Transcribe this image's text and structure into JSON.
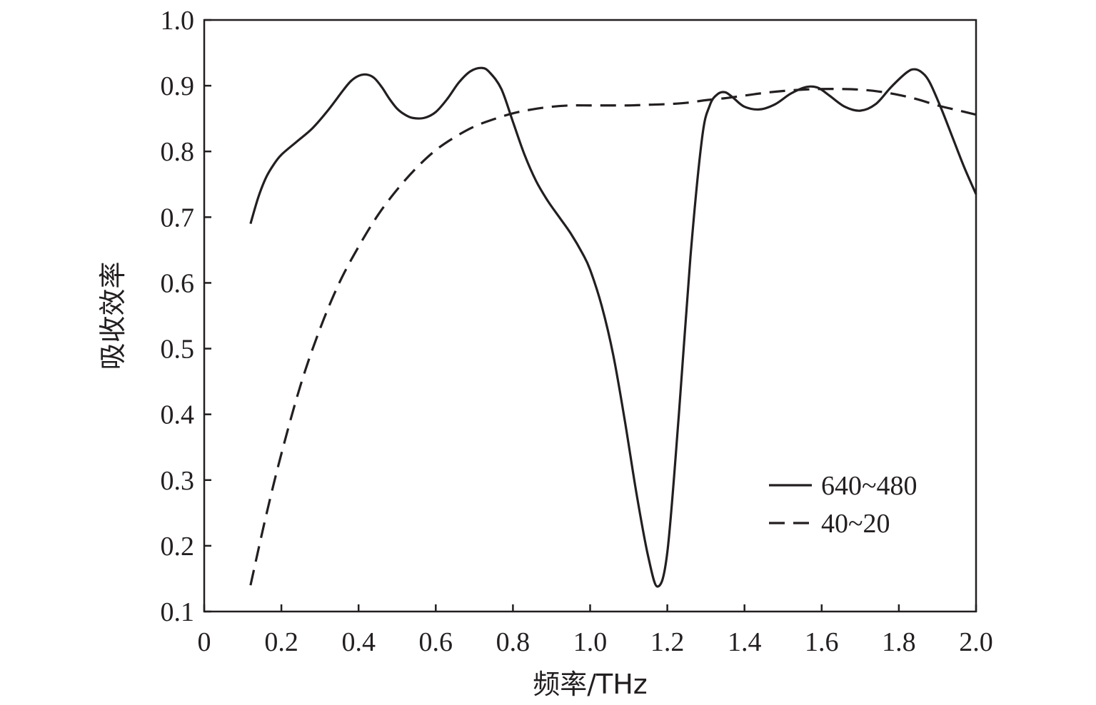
{
  "chart_data": {
    "type": "line",
    "title": "",
    "xlabel": "频率/THz",
    "ylabel": "吸收效率",
    "xlim": [
      0,
      2.0
    ],
    "ylim": [
      0.1,
      1.0
    ],
    "x_ticks": [
      "0",
      "0.2",
      "0.4",
      "0.6",
      "0.8",
      "1.0",
      "1.2",
      "1.4",
      "1.6",
      "1.8",
      "2.0"
    ],
    "y_ticks": [
      "0.1",
      "0.2",
      "0.3",
      "0.4",
      "0.5",
      "0.6",
      "0.7",
      "0.8",
      "0.9",
      "1.0"
    ],
    "grid": false,
    "legend": {
      "placement": "bottom-right"
    },
    "series": [
      {
        "name": "640~480",
        "style": "solid",
        "color": "#231f20",
        "points": [
          [
            0.12,
            0.69
          ],
          [
            0.14,
            0.73
          ],
          [
            0.16,
            0.76
          ],
          [
            0.18,
            0.78
          ],
          [
            0.2,
            0.795
          ],
          [
            0.24,
            0.815
          ],
          [
            0.28,
            0.835
          ],
          [
            0.32,
            0.862
          ],
          [
            0.36,
            0.893
          ],
          [
            0.38,
            0.907
          ],
          [
            0.4,
            0.915
          ],
          [
            0.42,
            0.917
          ],
          [
            0.44,
            0.912
          ],
          [
            0.46,
            0.898
          ],
          [
            0.48,
            0.88
          ],
          [
            0.5,
            0.865
          ],
          [
            0.52,
            0.856
          ],
          [
            0.54,
            0.851
          ],
          [
            0.57,
            0.851
          ],
          [
            0.6,
            0.86
          ],
          [
            0.63,
            0.88
          ],
          [
            0.66,
            0.905
          ],
          [
            0.69,
            0.922
          ],
          [
            0.72,
            0.927
          ],
          [
            0.74,
            0.92
          ],
          [
            0.77,
            0.895
          ],
          [
            0.8,
            0.845
          ],
          [
            0.83,
            0.795
          ],
          [
            0.86,
            0.755
          ],
          [
            0.89,
            0.725
          ],
          [
            0.92,
            0.7
          ],
          [
            0.95,
            0.675
          ],
          [
            0.98,
            0.645
          ],
          [
            1.0,
            0.62
          ],
          [
            1.03,
            0.565
          ],
          [
            1.06,
            0.49
          ],
          [
            1.09,
            0.39
          ],
          [
            1.12,
            0.28
          ],
          [
            1.15,
            0.185
          ],
          [
            1.175,
            0.138
          ],
          [
            1.2,
            0.19
          ],
          [
            1.23,
            0.4
          ],
          [
            1.26,
            0.64
          ],
          [
            1.29,
            0.82
          ],
          [
            1.31,
            0.87
          ],
          [
            1.33,
            0.887
          ],
          [
            1.35,
            0.89
          ],
          [
            1.37,
            0.882
          ],
          [
            1.4,
            0.868
          ],
          [
            1.44,
            0.864
          ],
          [
            1.48,
            0.872
          ],
          [
            1.52,
            0.888
          ],
          [
            1.56,
            0.898
          ],
          [
            1.59,
            0.897
          ],
          [
            1.62,
            0.885
          ],
          [
            1.66,
            0.868
          ],
          [
            1.7,
            0.862
          ],
          [
            1.74,
            0.872
          ],
          [
            1.78,
            0.898
          ],
          [
            1.82,
            0.92
          ],
          [
            1.84,
            0.925
          ],
          [
            1.86,
            0.92
          ],
          [
            1.88,
            0.905
          ],
          [
            1.91,
            0.865
          ],
          [
            1.94,
            0.82
          ],
          [
            1.97,
            0.775
          ],
          [
            2.0,
            0.735
          ]
        ]
      },
      {
        "name": "40~20",
        "style": "dashed",
        "color": "#231f20",
        "points": [
          [
            0.12,
            0.14
          ],
          [
            0.16,
            0.245
          ],
          [
            0.2,
            0.34
          ],
          [
            0.25,
            0.445
          ],
          [
            0.3,
            0.53
          ],
          [
            0.35,
            0.6
          ],
          [
            0.4,
            0.655
          ],
          [
            0.45,
            0.703
          ],
          [
            0.5,
            0.742
          ],
          [
            0.55,
            0.775
          ],
          [
            0.6,
            0.802
          ],
          [
            0.65,
            0.822
          ],
          [
            0.7,
            0.838
          ],
          [
            0.75,
            0.849
          ],
          [
            0.8,
            0.858
          ],
          [
            0.85,
            0.864
          ],
          [
            0.9,
            0.868
          ],
          [
            0.95,
            0.87
          ],
          [
            1.0,
            0.87
          ],
          [
            1.05,
            0.87
          ],
          [
            1.1,
            0.87
          ],
          [
            1.15,
            0.871
          ],
          [
            1.2,
            0.872
          ],
          [
            1.25,
            0.874
          ],
          [
            1.3,
            0.878
          ],
          [
            1.35,
            0.881
          ],
          [
            1.4,
            0.885
          ],
          [
            1.45,
            0.889
          ],
          [
            1.5,
            0.892
          ],
          [
            1.55,
            0.894
          ],
          [
            1.6,
            0.895
          ],
          [
            1.65,
            0.895
          ],
          [
            1.7,
            0.894
          ],
          [
            1.75,
            0.891
          ],
          [
            1.8,
            0.886
          ],
          [
            1.85,
            0.879
          ],
          [
            1.9,
            0.87
          ],
          [
            1.95,
            0.863
          ],
          [
            2.0,
            0.856
          ]
        ]
      }
    ]
  }
}
